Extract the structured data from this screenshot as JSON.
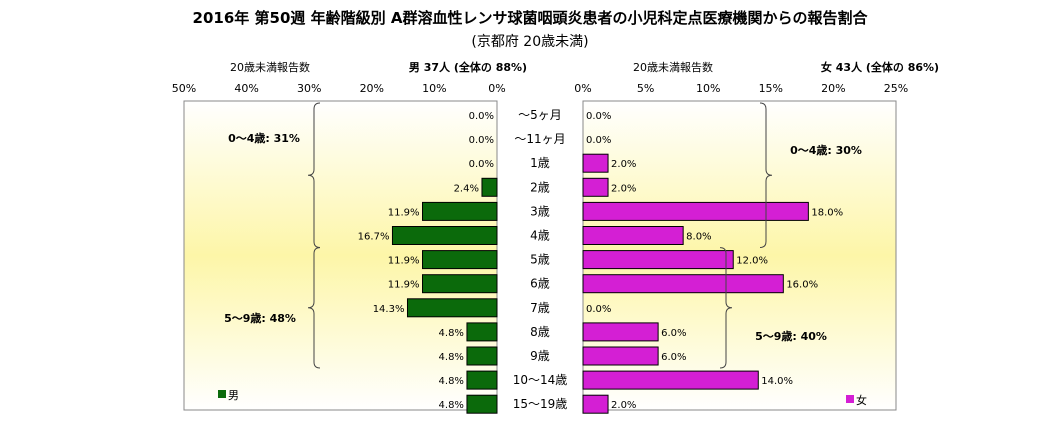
{
  "chart_data": {
    "type": "bar",
    "title": "2016年 第50週 年齢階級別 A群溶血性レンサ球菌咽頭炎患者の小児科定点医療機関からの報告割合",
    "subtitle": "(京都府 20歳未満)",
    "categories": [
      "～5ヶ月",
      "～11ヶ月",
      "1歳",
      "2歳",
      "3歳",
      "4歳",
      "5歳",
      "6歳",
      "7歳",
      "8歳",
      "9歳",
      "10～14歳",
      "15～19歳"
    ],
    "series": [
      {
        "name": "男",
        "values": [
          0.0,
          0.0,
          0.0,
          2.4,
          11.9,
          16.7,
          11.9,
          11.9,
          14.3,
          4.8,
          4.8,
          4.8,
          4.8
        ],
        "labels": [
          "0.0%",
          "0.0%",
          "0.0%",
          "2.4%",
          "11.9%",
          "16.7%",
          "11.9%",
          "11.9%",
          "14.3%",
          "4.8%",
          "4.8%",
          "4.8%",
          "4.8%"
        ],
        "color": "#0b6a0b",
        "axis_label": "20歳未満報告数",
        "summary": "男 37人 (全体の 88%)",
        "xlim": [
          0,
          50
        ],
        "ticks": [
          "50%",
          "40%",
          "30%",
          "20%",
          "10%",
          "0%"
        ],
        "groups": [
          "0～4歳: 31%",
          "5～9歳: 48%"
        ],
        "legend": "男"
      },
      {
        "name": "女",
        "values": [
          0.0,
          0.0,
          2.0,
          2.0,
          18.0,
          8.0,
          12.0,
          16.0,
          0.0,
          6.0,
          6.0,
          14.0,
          2.0
        ],
        "labels": [
          "0.0%",
          "0.0%",
          "2.0%",
          "2.0%",
          "18.0%",
          "8.0%",
          "12.0%",
          "16.0%",
          "0.0%",
          "6.0%",
          "6.0%",
          "14.0%",
          "2.0%"
        ],
        "color": "#d41fd4",
        "axis_label": "20歳未満報告数",
        "summary": "女 43人 (全体の 86%)",
        "xlim": [
          0,
          25
        ],
        "ticks": [
          "0%",
          "5%",
          "10%",
          "15%",
          "20%",
          "25%"
        ],
        "groups": [
          "0～4歳: 30%",
          "5～9歳: 40%"
        ],
        "legend": "女"
      }
    ],
    "legend_position": "bottom-left / bottom-right",
    "background": {
      "center": "#fdf6a8",
      "edge": "#ffffff"
    }
  }
}
